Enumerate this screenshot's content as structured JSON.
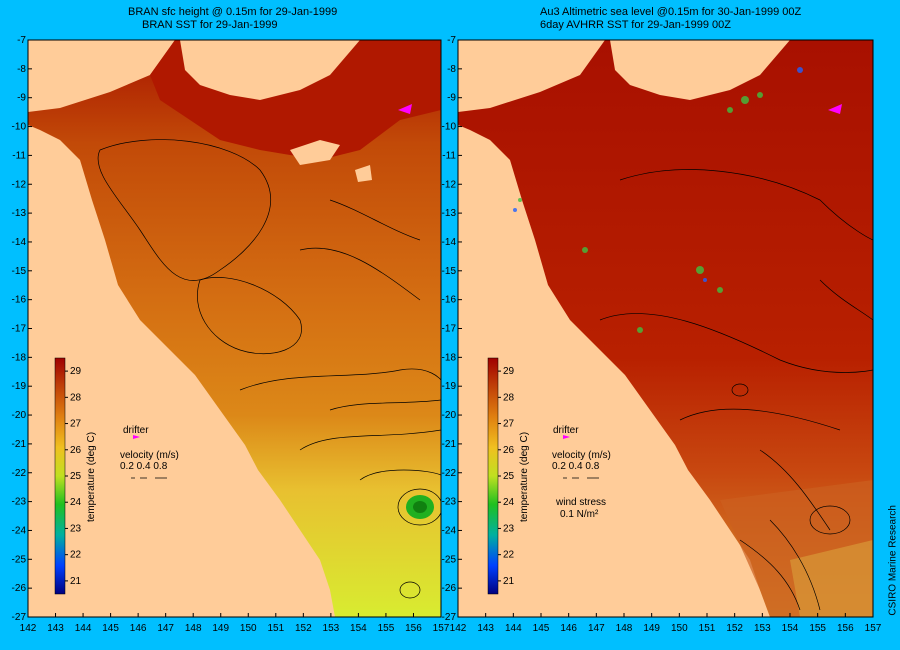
{
  "panels": [
    {
      "id": "left",
      "title_line1": "BRAN sfc height @ 0.15m for 29-Jan-1999",
      "title_line2": "BRAN SST for 29-Jan-1999",
      "colorbar_label": "temperature (deg C)",
      "drifter_label": "drifter",
      "velocity_label": "velocity (m/s)",
      "velocity_values": "0.2 0.4 0.8",
      "wind_label": "",
      "wind_value": ""
    },
    {
      "id": "right",
      "title_line1": "Au3 Altimetric sea level @0.15m for 30-Jan-1999 00Z",
      "title_line2": "6day AVHRR SST for 29-Jan-1999 00Z",
      "colorbar_label": "temperature (deg C)",
      "drifter_label": "drifter",
      "velocity_label": "velocity (m/s)",
      "velocity_values": "0.2 0.4 0.8",
      "wind_label": "wind stress",
      "wind_value": "0.1 N/m²"
    }
  ],
  "axes": {
    "lon_ticks": [
      142,
      143,
      144,
      145,
      146,
      147,
      148,
      149,
      150,
      151,
      152,
      153,
      154,
      155,
      156,
      157
    ],
    "lat_ticks": [
      -7,
      -8,
      -9,
      -10,
      -11,
      -12,
      -13,
      -14,
      -15,
      -16,
      -17,
      -18,
      -19,
      -20,
      -21,
      -22,
      -23,
      -24,
      -25,
      -26,
      -27
    ],
    "lon_range": [
      142,
      157
    ],
    "lat_range": [
      -27,
      -7
    ]
  },
  "colorbar": {
    "ticks": [
      29,
      28,
      27,
      26,
      25,
      24,
      23,
      22,
      21
    ],
    "range": [
      20.5,
      29.5
    ]
  },
  "credit": "CSIRO Marine Research",
  "colors": {
    "background": "#00bfff",
    "land": "#ffcc99",
    "warm_sea": "#b01800",
    "mid_sea": "#d87010",
    "cool_sea": "#d8e020"
  }
}
